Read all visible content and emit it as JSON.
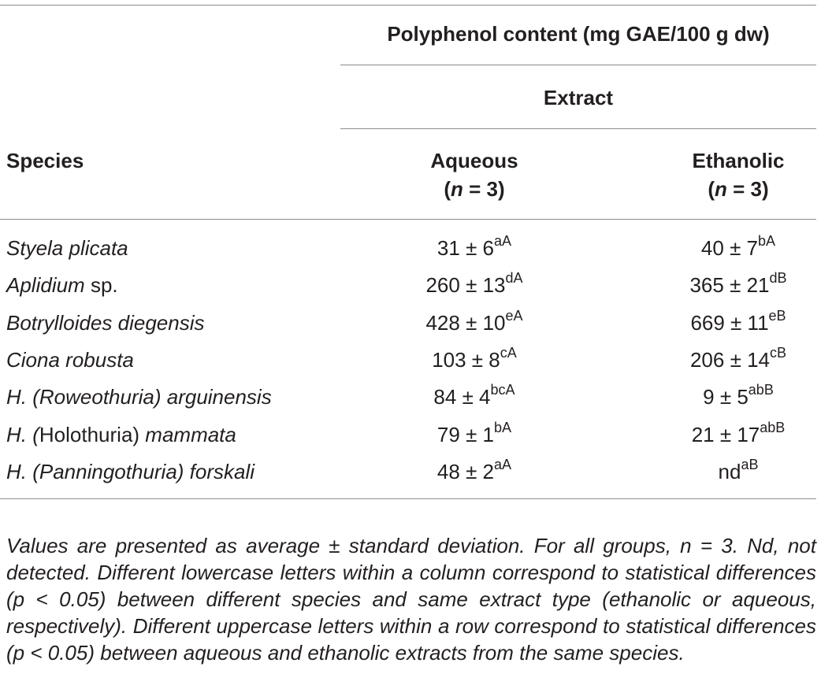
{
  "header": {
    "main_title": "Polyphenol content (mg GAE/100 g dw)",
    "sub_title": "Extract",
    "species_label": "Species",
    "col_aqueous": "Aqueous",
    "col_ethanolic": "Ethanolic",
    "n_italic": "n",
    "n_rest": " = 3)",
    "n_open": "("
  },
  "rows": [
    {
      "species_italic": "Styela plicata",
      "species_plain": "",
      "aq_val": "31 ± 6",
      "aq_sup": "aA",
      "et_val": "40 ± 7",
      "et_sup": "bA"
    },
    {
      "species_italic": "Aplidium",
      "species_plain": " sp.",
      "aq_val": "260 ± 13",
      "aq_sup": "dA",
      "et_val": "365 ± 21",
      "et_sup": "dB"
    },
    {
      "species_italic": "Botrylloides diegensis",
      "species_plain": "",
      "aq_val": "428 ± 10",
      "aq_sup": "eA",
      "et_val": "669 ± 11",
      "et_sup": "eB"
    },
    {
      "species_italic": "Ciona robusta",
      "species_plain": "",
      "aq_val": "103 ± 8",
      "aq_sup": "cA",
      "et_val": "206 ± 14",
      "et_sup": "cB"
    },
    {
      "species_italic": "H. (Roweothuria) arguinensis",
      "species_plain": "",
      "aq_val": "84 ± 4",
      "aq_sup": "bcA",
      "et_val": "9 ± 5",
      "et_sup": "abB"
    },
    {
      "species_italic": "H. (",
      "species_plain": "Holothuria)",
      "species_italic2": " mammata",
      "aq_val": "79 ± 1",
      "aq_sup": "bA",
      "et_val": "21 ± 17",
      "et_sup": "abB"
    },
    {
      "species_italic": "H. (Panningothuria) forskali",
      "species_plain": "",
      "aq_val": "48 ± 2",
      "aq_sup": "aA",
      "et_val": "nd",
      "et_sup": "aB"
    }
  ],
  "caption": "Values are presented as average ± standard deviation. For all groups, n = 3. Nd, not detected. Different lowercase letters within a column correspond to statistical differences (p < 0.05) between different species and same extract type (ethanolic or aqueous, respectively). Different uppercase letters within a row correspond to statistical differences (p < 0.05) between aqueous and ethanolic extracts from the same species."
}
